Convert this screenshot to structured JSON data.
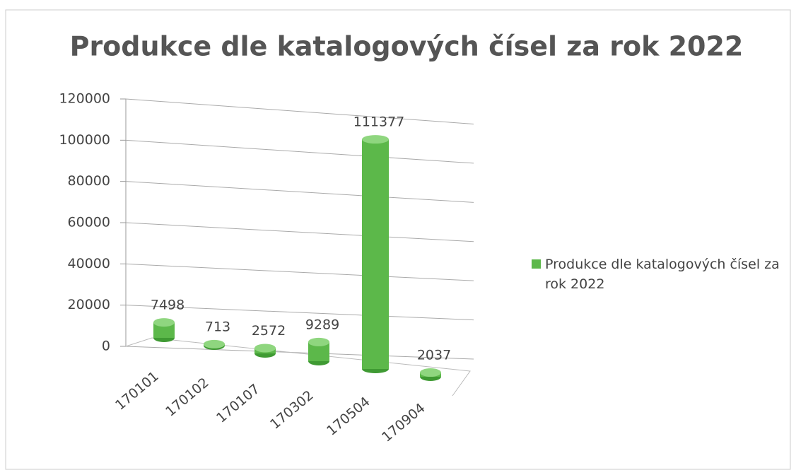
{
  "chart_data": {
    "type": "bar",
    "title": "Produkce dle katalogových čísel za rok 2022",
    "categories": [
      "170101",
      "170102",
      "170107",
      "170302",
      "170504",
      "170904"
    ],
    "series": [
      {
        "name": "Produkce dle katalogových čísel za rok 2022",
        "color": "#5cb84a",
        "values": [
          7498,
          713,
          2572,
          9289,
          111377,
          2037
        ]
      }
    ],
    "ylim": [
      0,
      120000
    ],
    "yticks": [
      0,
      20000,
      40000,
      60000,
      80000,
      100000,
      120000
    ],
    "grid": true,
    "legend": "right"
  }
}
